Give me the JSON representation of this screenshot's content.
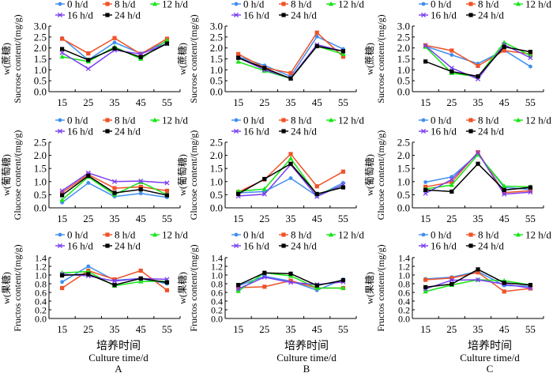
{
  "legend": [
    {
      "name": "0 h/d",
      "color": "#3f8ef0",
      "marker": "circle"
    },
    {
      "name": "8 h/d",
      "color": "#f05228",
      "marker": "square"
    },
    {
      "name": "12 h/d",
      "color": "#14e614",
      "marker": "triangle"
    },
    {
      "name": "16 h/d",
      "color": "#7a3cf0",
      "marker": "x"
    },
    {
      "name": "24 h/d",
      "color": "#000000",
      "marker": "square"
    }
  ],
  "x_label_cn": "培养时间",
  "x_label_en": "Culture time/d",
  "column_labels": [
    "A",
    "B",
    "C"
  ],
  "chart_data": [
    {
      "type": "line",
      "column": "A",
      "row": "sucrose",
      "ylabel_cn": "w(蔗糖)",
      "ylabel_en": "Sucrose content/(mg/g)",
      "categories": [
        "15",
        "25",
        "35",
        "45",
        "55"
      ],
      "ylim": [
        0,
        3.0
      ],
      "yticks": [
        "0.0",
        "0.5",
        "1.0",
        "1.5",
        "2.0",
        "2.5",
        "3.0"
      ],
      "series": [
        {
          "name": "0 h/d",
          "values": [
            2.45,
            1.45,
            2.25,
            1.75,
            2.3
          ]
        },
        {
          "name": "8 h/d",
          "values": [
            2.42,
            1.75,
            2.45,
            1.72,
            2.42
          ]
        },
        {
          "name": "12 h/d",
          "values": [
            1.6,
            1.38,
            2.05,
            1.5,
            2.35
          ]
        },
        {
          "name": "16 h/d",
          "values": [
            1.78,
            1.05,
            1.9,
            1.72,
            2.2
          ]
        },
        {
          "name": "24 h/d",
          "values": [
            1.95,
            1.45,
            1.98,
            1.58,
            2.2
          ]
        }
      ]
    },
    {
      "type": "line",
      "column": "B",
      "row": "sucrose",
      "ylabel_cn": "w(蔗糖)",
      "ylabel_en": "Sucrose content/(mg/g)",
      "categories": [
        "15",
        "25",
        "35",
        "45",
        "55"
      ],
      "ylim": [
        0,
        3.0
      ],
      "yticks": [
        "0.0",
        "0.5",
        "1.0",
        "1.5",
        "2.0",
        "2.5",
        "3.0"
      ],
      "series": [
        {
          "name": "0 h/d",
          "values": [
            1.6,
            1.2,
            0.7,
            2.52,
            1.95
          ]
        },
        {
          "name": "8 h/d",
          "values": [
            1.72,
            1.1,
            0.85,
            2.7,
            1.6
          ]
        },
        {
          "name": "12 h/d",
          "values": [
            1.37,
            0.95,
            0.6,
            2.08,
            1.72
          ]
        },
        {
          "name": "16 h/d",
          "values": [
            1.55,
            1.0,
            0.62,
            2.15,
            1.85
          ]
        },
        {
          "name": "24 h/d",
          "values": [
            1.55,
            1.08,
            0.6,
            2.08,
            1.85
          ]
        }
      ]
    },
    {
      "type": "line",
      "column": "C",
      "row": "sucrose",
      "ylabel_cn": "w(蔗糖)",
      "ylabel_en": "Sucrose content/(mg/g)",
      "categories": [
        "15",
        "25",
        "35",
        "45",
        "55"
      ],
      "ylim": [
        0,
        3.0
      ],
      "yticks": [
        "0.0",
        "0.5",
        "1.0",
        "1.5",
        "2.0",
        "2.5",
        "3.0"
      ],
      "series": [
        {
          "name": "0 h/d",
          "values": [
            2.08,
            1.68,
            1.28,
            1.9,
            1.15
          ]
        },
        {
          "name": "8 h/d",
          "values": [
            2.12,
            1.88,
            1.18,
            1.88,
            1.72
          ]
        },
        {
          "name": "12 h/d",
          "values": [
            2.05,
            0.85,
            0.68,
            2.25,
            1.65
          ]
        },
        {
          "name": "16 h/d",
          "values": [
            2.1,
            1.08,
            0.58,
            2.15,
            1.55
          ]
        },
        {
          "name": "24 h/d",
          "values": [
            1.38,
            0.92,
            0.7,
            2.05,
            1.82
          ]
        }
      ]
    },
    {
      "type": "line",
      "column": "A",
      "row": "glucose",
      "ylabel_cn": "w(葡萄糖)",
      "ylabel_en": "Glucose content/(mg/g)",
      "categories": [
        "15",
        "25",
        "35",
        "45",
        "55"
      ],
      "ylim": [
        0,
        2.5
      ],
      "yticks": [
        "0.0",
        "0.5",
        "1.0",
        "1.5",
        "2.0",
        "2.5"
      ],
      "series": [
        {
          "name": "0 h/d",
          "values": [
            0.2,
            0.95,
            0.43,
            0.55,
            0.4
          ]
        },
        {
          "name": "8 h/d",
          "values": [
            0.58,
            1.27,
            0.75,
            0.8,
            0.65
          ]
        },
        {
          "name": "12 h/d",
          "values": [
            0.3,
            1.18,
            0.5,
            0.98,
            0.5
          ]
        },
        {
          "name": "16 h/d",
          "values": [
            0.65,
            1.33,
            1.0,
            1.02,
            0.95
          ]
        },
        {
          "name": "24 h/d",
          "values": [
            0.48,
            1.22,
            0.57,
            0.7,
            0.48
          ]
        }
      ]
    },
    {
      "type": "line",
      "column": "B",
      "row": "glucose",
      "ylabel_cn": "w(葡萄糖)",
      "ylabel_en": "Glucose content/(mg/g)",
      "categories": [
        "15",
        "25",
        "35",
        "45",
        "55"
      ],
      "ylim": [
        0,
        2.5
      ],
      "yticks": [
        "0.0",
        "0.5",
        "1.0",
        "1.5",
        "2.0",
        "2.5"
      ],
      "series": [
        {
          "name": "0 h/d",
          "values": [
            0.57,
            0.62,
            1.13,
            0.45,
            0.95
          ]
        },
        {
          "name": "8 h/d",
          "values": [
            0.6,
            1.08,
            2.05,
            0.82,
            1.38
          ]
        },
        {
          "name": "12 h/d",
          "values": [
            0.63,
            0.72,
            1.88,
            0.5,
            0.85
          ]
        },
        {
          "name": "16 h/d",
          "values": [
            0.45,
            0.52,
            1.65,
            0.43,
            0.88
          ]
        },
        {
          "name": "24 h/d",
          "values": [
            0.53,
            1.1,
            1.68,
            0.53,
            0.78
          ]
        }
      ]
    },
    {
      "type": "line",
      "column": "C",
      "row": "glucose",
      "ylabel_cn": "w(葡萄糖)",
      "ylabel_en": "Glucose content/(mg/g)",
      "categories": [
        "15",
        "25",
        "35",
        "45",
        "55"
      ],
      "ylim": [
        0,
        2.5
      ],
      "yticks": [
        "0.0",
        "0.5",
        "1.0",
        "1.5",
        "2.0",
        "2.5"
      ],
      "series": [
        {
          "name": "0 h/d",
          "values": [
            0.98,
            1.18,
            2.05,
            0.78,
            0.7
          ]
        },
        {
          "name": "8 h/d",
          "values": [
            0.8,
            0.98,
            2.12,
            0.58,
            0.65
          ]
        },
        {
          "name": "12 h/d",
          "values": [
            0.72,
            0.87,
            2.03,
            0.83,
            0.8
          ]
        },
        {
          "name": "16 h/d",
          "values": [
            0.55,
            1.08,
            2.1,
            0.52,
            0.6
          ]
        },
        {
          "name": "24 h/d",
          "values": [
            0.68,
            0.62,
            1.68,
            0.68,
            0.78
          ]
        }
      ]
    },
    {
      "type": "line",
      "column": "A",
      "row": "fructose",
      "ylabel_cn": "w(果糖)",
      "ylabel_en": "Fructos content/(mg/g)",
      "categories": [
        "15",
        "25",
        "35",
        "45",
        "55"
      ],
      "ylim": [
        0,
        1.4
      ],
      "yticks": [
        "0.0",
        "0.2",
        "0.4",
        "0.6",
        "0.8",
        "1.0",
        "1.2",
        "1.4"
      ],
      "series": [
        {
          "name": "0 h/d",
          "values": [
            0.84,
            1.2,
            0.88,
            0.92,
            0.8
          ]
        },
        {
          "name": "8 h/d",
          "values": [
            0.7,
            1.1,
            0.9,
            1.1,
            0.65
          ]
        },
        {
          "name": "12 h/d",
          "values": [
            1.05,
            1.08,
            0.75,
            0.85,
            0.86
          ]
        },
        {
          "name": "16 h/d",
          "values": [
            1.02,
            0.98,
            0.86,
            0.92,
            0.9
          ]
        },
        {
          "name": "24 h/d",
          "values": [
            0.99,
            1.02,
            0.77,
            0.92,
            0.83
          ]
        }
      ]
    },
    {
      "type": "line",
      "column": "B",
      "row": "fructose",
      "ylabel_cn": "w(果糖)",
      "ylabel_en": "Fructos content/(mg/g)",
      "categories": [
        "15",
        "25",
        "35",
        "45",
        "55"
      ],
      "ylim": [
        0,
        1.4
      ],
      "yticks": [
        "0.0",
        "0.2",
        "0.4",
        "0.6",
        "0.8",
        "1.0",
        "1.2",
        "1.4"
      ],
      "series": [
        {
          "name": "0 h/d",
          "values": [
            0.75,
            0.97,
            0.86,
            0.65,
            0.9
          ]
        },
        {
          "name": "8 h/d",
          "values": [
            0.71,
            0.73,
            0.87,
            0.7,
            0.7
          ]
        },
        {
          "name": "12 h/d",
          "values": [
            0.63,
            1.05,
            0.98,
            0.7,
            0.7
          ]
        },
        {
          "name": "16 h/d",
          "values": [
            0.68,
            0.95,
            0.83,
            0.78,
            0.84
          ]
        },
        {
          "name": "24 h/d",
          "values": [
            0.77,
            1.05,
            1.03,
            0.76,
            0.88
          ]
        }
      ]
    },
    {
      "type": "line",
      "column": "C",
      "row": "fructose",
      "ylabel_cn": "w(果糖)",
      "ylabel_en": "Fructos content/(mg/g)",
      "categories": [
        "15",
        "25",
        "35",
        "45",
        "55"
      ],
      "ylim": [
        0,
        1.4
      ],
      "yticks": [
        "0.0",
        "0.2",
        "0.4",
        "0.6",
        "0.8",
        "1.0",
        "1.2",
        "1.4"
      ],
      "series": [
        {
          "name": "0 h/d",
          "values": [
            0.91,
            0.95,
            1.08,
            0.76,
            0.74
          ]
        },
        {
          "name": "8 h/d",
          "values": [
            0.89,
            0.93,
            1.06,
            0.62,
            0.69
          ]
        },
        {
          "name": "12 h/d",
          "values": [
            0.62,
            0.77,
            0.89,
            0.87,
            0.77
          ]
        },
        {
          "name": "16 h/d",
          "values": [
            0.68,
            0.88,
            0.89,
            0.79,
            0.7
          ]
        },
        {
          "name": "24 h/d",
          "values": [
            0.72,
            0.79,
            1.13,
            0.82,
            0.77
          ]
        }
      ]
    }
  ]
}
